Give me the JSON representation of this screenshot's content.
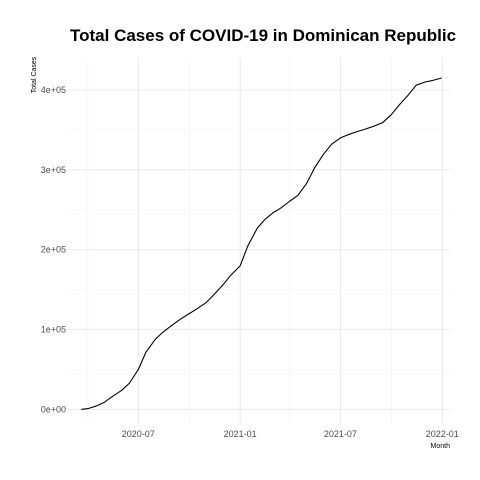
{
  "chart_data": {
    "type": "line",
    "title": "Total Cases of COVID-19 in Dominican Republic",
    "xlabel": "Month",
    "ylabel": "Total Cases",
    "x_ticks": [
      "2020-07",
      "2021-01",
      "2021-07",
      "2022-01"
    ],
    "y_ticks": [
      "0e+00",
      "1e+05",
      "2e+05",
      "3e+05",
      "4e+05"
    ],
    "y_tick_values": [
      0,
      100000,
      200000,
      300000,
      400000
    ],
    "grid": true,
    "legend": "none",
    "line_color": "#000000",
    "series": [
      {
        "x": [
          "2020-03-20",
          "2020-04-01",
          "2020-04-15",
          "2020-05-01",
          "2020-05-15",
          "2020-06-01",
          "2020-06-15",
          "2020-07-01",
          "2020-07-15",
          "2020-08-01",
          "2020-08-15",
          "2020-09-01",
          "2020-09-15",
          "2020-10-01",
          "2020-10-15",
          "2020-11-01",
          "2020-11-15",
          "2020-12-01",
          "2020-12-15",
          "2021-01-01",
          "2021-01-15",
          "2021-02-01",
          "2021-02-15",
          "2021-03-01",
          "2021-03-15",
          "2021-04-01",
          "2021-04-15",
          "2021-05-01",
          "2021-05-15",
          "2021-06-01",
          "2021-06-15",
          "2021-07-01",
          "2021-07-15",
          "2021-08-01",
          "2021-08-15",
          "2021-09-01",
          "2021-09-15",
          "2021-10-01",
          "2021-10-15",
          "2021-11-01",
          "2021-11-15",
          "2021-12-01",
          "2021-12-15",
          "2021-12-31"
        ],
        "values": [
          0,
          1000,
          4000,
          9000,
          16000,
          24000,
          33000,
          50000,
          72000,
          88000,
          97000,
          106000,
          113000,
          120000,
          126000,
          134000,
          144000,
          156000,
          168000,
          180000,
          205000,
          227000,
          238000,
          246000,
          252000,
          261000,
          268000,
          283000,
          302000,
          320000,
          332000,
          340000,
          344000,
          348000,
          351000,
          355000,
          359000,
          369000,
          381000,
          394000,
          406000,
          410000,
          412000,
          415000
        ]
      }
    ]
  }
}
